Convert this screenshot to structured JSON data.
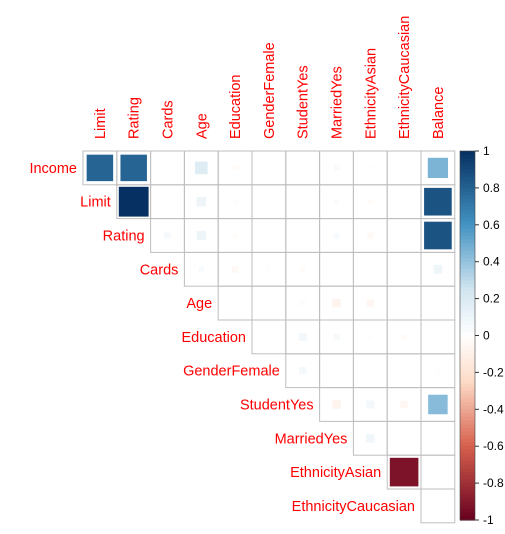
{
  "chart_data": {
    "type": "heatmap",
    "style": "corrplot-square-upper",
    "row_labels": [
      "Income",
      "Limit",
      "Rating",
      "Cards",
      "Age",
      "Education",
      "GenderFemale",
      "StudentYes",
      "MarriedYes",
      "EthnicityAsian",
      "EthnicityCaucasian"
    ],
    "col_labels": [
      "Limit",
      "Rating",
      "Cards",
      "Age",
      "Education",
      "GenderFemale",
      "StudentYes",
      "MarriedYes",
      "EthnicityAsian",
      "EthnicityCaucasian",
      "Balance"
    ],
    "values": [
      [
        0.79,
        0.79,
        -0.02,
        0.18,
        -0.03,
        -0.01,
        0.02,
        0.04,
        -0.02,
        0.0,
        0.46
      ],
      [
        null,
        1.0,
        0.01,
        0.1,
        -0.02,
        -0.01,
        -0.01,
        0.03,
        -0.03,
        0.0,
        0.86
      ],
      [
        null,
        null,
        0.05,
        0.1,
        -0.03,
        -0.01,
        -0.01,
        0.04,
        -0.04,
        0.0,
        0.86
      ],
      [
        null,
        null,
        null,
        0.04,
        -0.05,
        0.02,
        -0.03,
        -0.01,
        -0.01,
        0.0,
        0.09
      ],
      [
        null,
        null,
        null,
        null,
        0.0,
        0.0,
        -0.03,
        -0.08,
        -0.06,
        0.0,
        0.0
      ],
      [
        null,
        null,
        null,
        null,
        null,
        -0.01,
        0.07,
        0.05,
        0.02,
        -0.03,
        -0.01
      ],
      [
        null,
        null,
        null,
        null,
        null,
        null,
        0.06,
        0.01,
        0.01,
        -0.01,
        0.02
      ],
      [
        null,
        null,
        null,
        null,
        null,
        null,
        null,
        -0.08,
        0.07,
        -0.06,
        0.43
      ],
      [
        null,
        null,
        null,
        null,
        null,
        null,
        null,
        null,
        0.08,
        -0.01,
        -0.01
      ],
      [
        null,
        null,
        null,
        null,
        null,
        null,
        null,
        null,
        null,
        -0.92,
        0.01
      ],
      [
        null,
        null,
        null,
        null,
        null,
        null,
        null,
        null,
        null,
        null,
        0.0
      ]
    ],
    "colorbar": {
      "range": [
        -1,
        1
      ],
      "ticks": [
        "1",
        "0.8",
        "0.6",
        "0.4",
        "0.2",
        "0",
        "-0.2",
        "-0.4",
        "-0.6",
        "-0.8",
        "-1"
      ],
      "tick_values": [
        1,
        0.8,
        0.6,
        0.4,
        0.2,
        0,
        -0.2,
        -0.4,
        -0.6,
        -0.8,
        -1
      ],
      "colors": {
        "neg_strong": "#67001F",
        "neg_mid": "#D6604D",
        "neg_light": "#FDDBC7",
        "neutral": "#FFFFFF",
        "pos_light": "#D1E5F0",
        "pos_mid": "#4393C3",
        "pos_strong": "#053061"
      }
    },
    "label_color": "#FF0000",
    "grid_color": "#BEBEBE"
  }
}
